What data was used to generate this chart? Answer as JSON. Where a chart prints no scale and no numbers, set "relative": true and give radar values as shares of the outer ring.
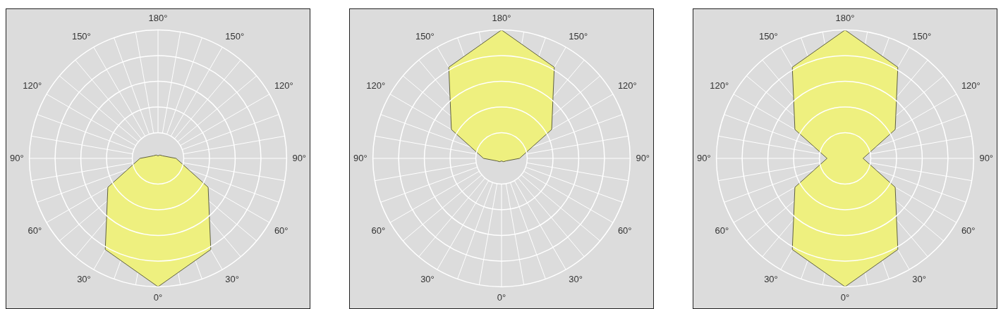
{
  "chart_data": [
    {
      "type": "radar",
      "relative": true,
      "grid": true,
      "marker": "none",
      "categories": [
        "180°",
        "150°",
        "120°",
        "90°",
        "60°",
        "30°",
        "0°",
        "30°",
        "60°",
        "90°",
        "120°",
        "150°"
      ],
      "series": [
        {
          "color": "#eef07f",
          "values": [
            0.02,
            0.03,
            0.04,
            0.14,
            0.45,
            0.82,
            1.0,
            0.82,
            0.45,
            0.14,
            0.04,
            0.03
          ]
        }
      ]
    },
    {
      "type": "radar",
      "relative": true,
      "grid": true,
      "marker": "none",
      "categories": [
        "180°",
        "150°",
        "120°",
        "90°",
        "60°",
        "30°",
        "0°",
        "30°",
        "60°",
        "90°",
        "120°",
        "150°"
      ],
      "series": [
        {
          "color": "#eef07f",
          "values": [
            1.0,
            0.82,
            0.45,
            0.14,
            0.04,
            0.03,
            0.02,
            0.03,
            0.04,
            0.14,
            0.45,
            0.82
          ]
        }
      ]
    },
    {
      "type": "radar",
      "relative": true,
      "grid": true,
      "marker": "none",
      "categories": [
        "180°",
        "150°",
        "120°",
        "90°",
        "60°",
        "30°",
        "0°",
        "30°",
        "60°",
        "90°",
        "120°",
        "150°"
      ],
      "series": [
        {
          "color": "#eef07f",
          "values": [
            1.0,
            0.82,
            0.45,
            0.14,
            0.45,
            0.82,
            1.0,
            0.82,
            0.45,
            0.14,
            0.45,
            0.82
          ]
        }
      ]
    }
  ]
}
